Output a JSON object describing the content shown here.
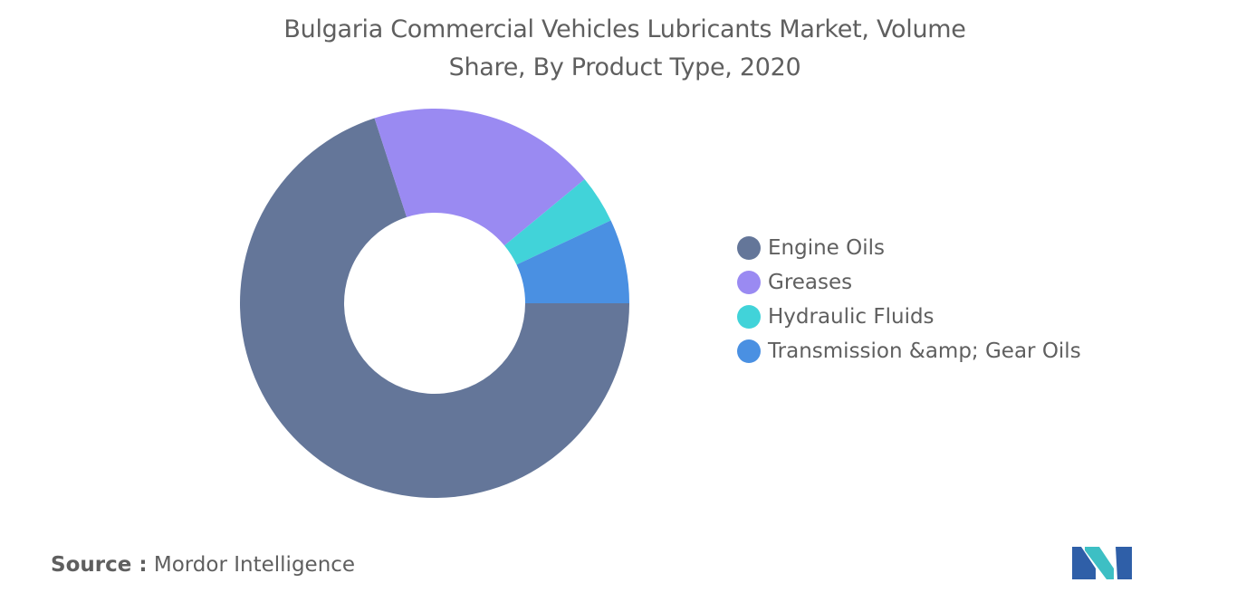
{
  "chart_data": {
    "type": "pie",
    "variant": "donut",
    "title_line1": "Bulgaria Commercial Vehicles Lubricants Market, Volume",
    "title_line2": "Share, By Product Type, 2020",
    "categories": [
      "Engine Oils",
      "Greases",
      "Hydraulic Fluids",
      "Transmission &amp; Gear Oils"
    ],
    "values": [
      70,
      19,
      4,
      7
    ],
    "colors": [
      "#647699",
      "#9a8af2",
      "#41d3d9",
      "#4a90e2"
    ],
    "legend_position": "right"
  },
  "footer": {
    "source_label": "Source :",
    "source_value": "Mordor Intelligence"
  },
  "logo": {
    "icon": "mordor-intelligence-logo-icon",
    "colors": [
      "#2f5fa8",
      "#3dbfc4"
    ]
  }
}
